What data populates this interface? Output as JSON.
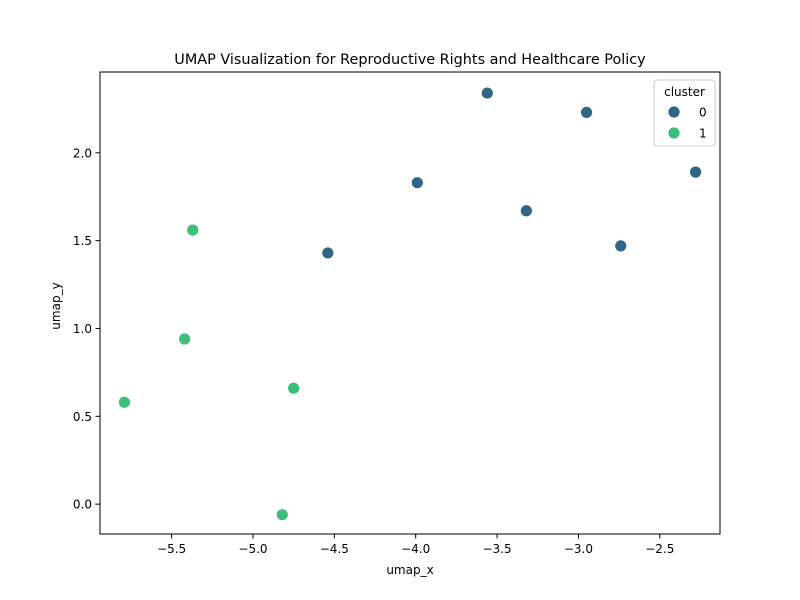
{
  "chart_data": {
    "type": "scatter",
    "title": "UMAP Visualization for Reproductive Rights and Healthcare Policy",
    "xlabel": "umap_x",
    "ylabel": "umap_y",
    "xlim": [
      -5.94,
      -2.13
    ],
    "ylim": [
      -0.17,
      2.46
    ],
    "xticks": [
      -5.5,
      -5.0,
      -4.5,
      -4.0,
      -3.5,
      -3.0,
      -2.5
    ],
    "xtick_labels": [
      "−5.5",
      "−5.0",
      "−4.5",
      "−4.0",
      "−3.5",
      "−3.0",
      "−2.5"
    ],
    "yticks": [
      0.0,
      0.5,
      1.0,
      1.5,
      2.0
    ],
    "ytick_labels": [
      "0.0",
      "0.5",
      "1.0",
      "1.5",
      "2.0"
    ],
    "grid": false,
    "legend": {
      "title": "cluster",
      "placement": "top-right"
    },
    "series": [
      {
        "name": "0",
        "color": "#2f6586",
        "points": [
          {
            "x": -3.56,
            "y": 2.34
          },
          {
            "x": -2.95,
            "y": 2.23
          },
          {
            "x": -2.28,
            "y": 1.89
          },
          {
            "x": -3.99,
            "y": 1.83
          },
          {
            "x": -3.32,
            "y": 1.67
          },
          {
            "x": -2.74,
            "y": 1.47
          },
          {
            "x": -4.54,
            "y": 1.43
          }
        ]
      },
      {
        "name": "1",
        "color": "#3bbf7b",
        "points": [
          {
            "x": -5.37,
            "y": 1.56
          },
          {
            "x": -5.42,
            "y": 0.94
          },
          {
            "x": -4.75,
            "y": 0.66
          },
          {
            "x": -5.79,
            "y": 0.58
          },
          {
            "x": -4.82,
            "y": -0.06
          }
        ]
      }
    ]
  }
}
